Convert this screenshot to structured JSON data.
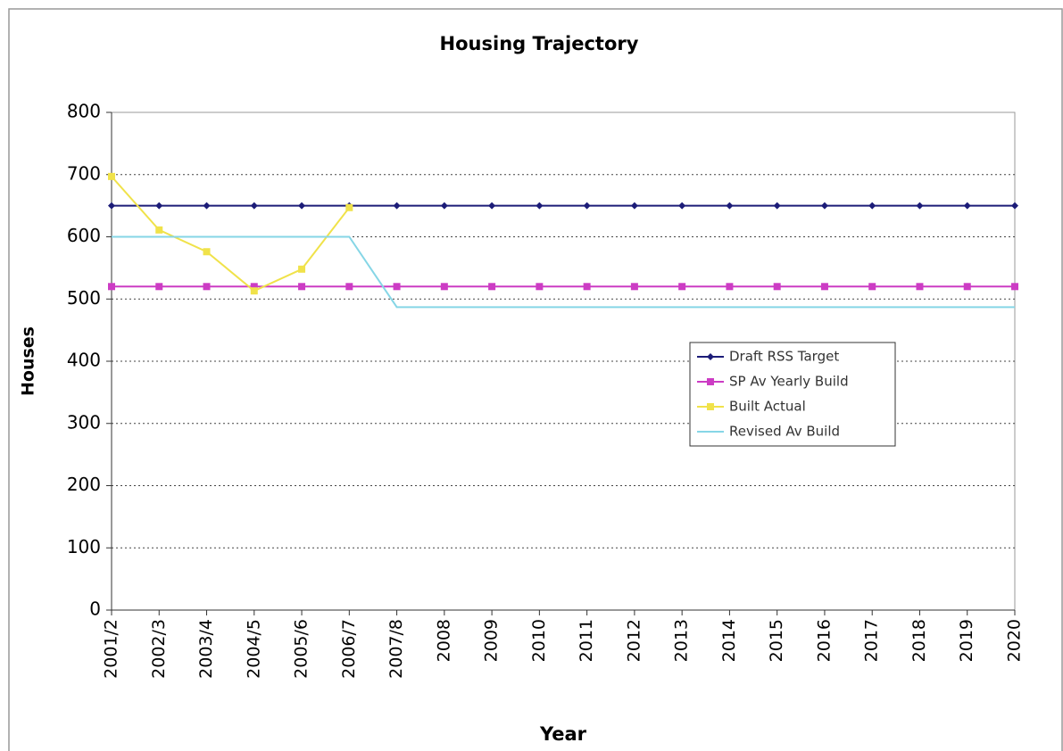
{
  "chart_data": {
    "type": "line",
    "title": "Housing Trajectory",
    "x_label": "Year",
    "y_label": "Houses",
    "categories": [
      "2001/2",
      "2002/3",
      "2003/4",
      "2004/5",
      "2005/6",
      "2006/7",
      "2007/8",
      "2008",
      "2009",
      "2010",
      "2011",
      "2012",
      "2013",
      "2014",
      "2015",
      "2016",
      "2017",
      "2018",
      "2019",
      "2020"
    ],
    "series": [
      {
        "name": "Draft RSS Target",
        "color": "#1c1c78",
        "marker": "diamond",
        "values": [
          650,
          650,
          650,
          650,
          650,
          650,
          650,
          650,
          650,
          650,
          650,
          650,
          650,
          650,
          650,
          650,
          650,
          650,
          650,
          650
        ]
      },
      {
        "name": "SP Av Yearly Build",
        "color": "#cc3cc4",
        "marker": "square",
        "values": [
          520,
          520,
          520,
          520,
          520,
          520,
          520,
          520,
          520,
          520,
          520,
          520,
          520,
          520,
          520,
          520,
          520,
          520,
          520,
          520
        ]
      },
      {
        "name": "Built Actual",
        "color": "#f0e24a",
        "marker": "square",
        "values": [
          697,
          611,
          576,
          513,
          548,
          647,
          null,
          null,
          null,
          null,
          null,
          null,
          null,
          null,
          null,
          null,
          null,
          null,
          null,
          null
        ]
      },
      {
        "name": "Revised Av Build",
        "color": "#86d6e6",
        "marker": "none",
        "values": [
          600,
          600,
          600,
          600,
          600,
          600,
          487,
          487,
          487,
          487,
          487,
          487,
          487,
          487,
          487,
          487,
          487,
          487,
          487,
          487
        ]
      }
    ],
    "ylim": [
      0,
      800
    ],
    "yticks": [
      0,
      100,
      200,
      300,
      400,
      500,
      600,
      700,
      800
    ],
    "grid": true,
    "legend": "lower right"
  }
}
